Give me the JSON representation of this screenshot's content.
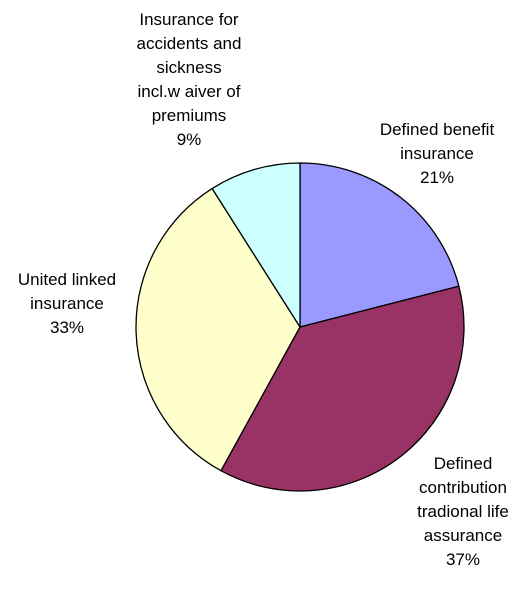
{
  "chart_data": {
    "type": "pie",
    "title": "",
    "slices": [
      {
        "label": "Defined benefit insurance",
        "label_lines": [
          "Defined benefit",
          "insurance"
        ],
        "value": 21,
        "percent_label": "21%",
        "color": "#9999ff"
      },
      {
        "label": "Defined contribution tradional life assurance",
        "label_lines": [
          "Defined",
          "contribution",
          "tradional life",
          "assurance"
        ],
        "value": 37,
        "percent_label": "37%",
        "color": "#993366"
      },
      {
        "label": "United linked insurance",
        "label_lines": [
          "United linked",
          "insurance"
        ],
        "value": 33,
        "percent_label": "33%",
        "color": "#ffffcc"
      },
      {
        "label": "Insurance for accidents and sickness incl.w aiver of premiums",
        "label_lines": [
          "Insurance  for",
          "accidents and",
          "sickness",
          "incl.w aiver of",
          "premiums"
        ],
        "value": 9,
        "percent_label": "9%",
        "color": "#ccffff"
      }
    ],
    "start_angle": "12 o'clock",
    "direction": "clockwise",
    "legend": "none",
    "slice_border_color": "#000000"
  }
}
